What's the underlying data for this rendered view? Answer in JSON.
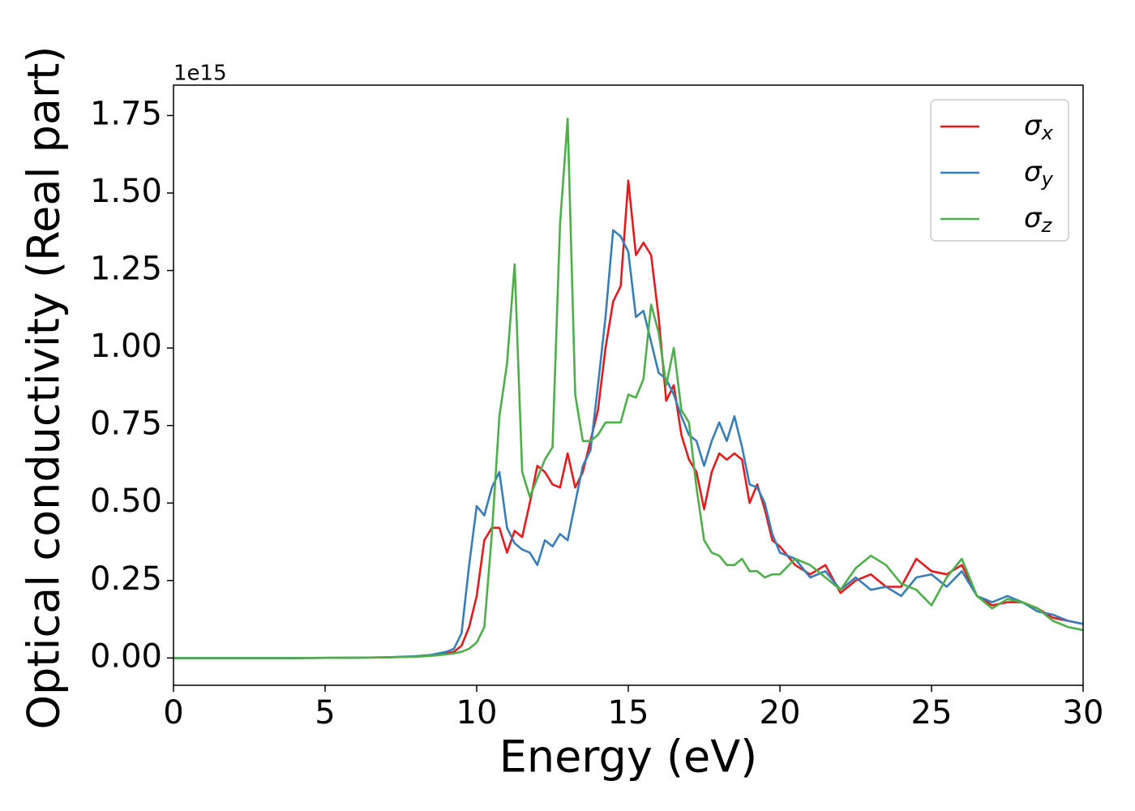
{
  "chart_data": {
    "type": "line",
    "xlabel": "Energy (eV)",
    "ylabel": "Optical conductivity (Real part)",
    "y_offset_label": "1e15",
    "x": [
      0,
      2,
      4,
      6,
      7,
      8,
      8.5,
      9,
      9.25,
      9.5,
      9.75,
      10,
      10.25,
      10.5,
      10.75,
      11,
      11.25,
      11.5,
      11.75,
      12,
      12.25,
      12.5,
      12.75,
      13,
      13.25,
      13.5,
      13.75,
      14,
      14.25,
      14.5,
      14.75,
      15,
      15.25,
      15.5,
      15.75,
      16,
      16.25,
      16.5,
      16.75,
      17,
      17.25,
      17.5,
      17.75,
      18,
      18.25,
      18.5,
      18.75,
      19,
      19.25,
      19.5,
      19.75,
      20,
      20.5,
      21,
      21.5,
      22,
      22.5,
      23,
      23.5,
      24,
      24.5,
      25,
      25.5,
      26,
      26.5,
      27,
      27.5,
      28,
      28.5,
      29,
      29.5,
      30
    ],
    "series": [
      {
        "name": "σx",
        "color": "#e41a1c",
        "values": [
          0,
          0,
          0,
          0.001,
          0.002,
          0.005,
          0.008,
          0.015,
          0.02,
          0.04,
          0.1,
          0.2,
          0.38,
          0.42,
          0.42,
          0.34,
          0.41,
          0.39,
          0.5,
          0.62,
          0.6,
          0.56,
          0.55,
          0.66,
          0.55,
          0.6,
          0.7,
          0.8,
          1.0,
          1.15,
          1.2,
          1.54,
          1.3,
          1.34,
          1.3,
          1.1,
          0.83,
          0.88,
          0.72,
          0.64,
          0.6,
          0.48,
          0.6,
          0.66,
          0.64,
          0.66,
          0.64,
          0.5,
          0.56,
          0.48,
          0.38,
          0.36,
          0.3,
          0.27,
          0.3,
          0.21,
          0.25,
          0.27,
          0.23,
          0.23,
          0.32,
          0.28,
          0.27,
          0.3,
          0.2,
          0.17,
          0.18,
          0.18,
          0.16,
          0.13,
          0.12,
          0.11
        ]
      },
      {
        "name": "σy",
        "color": "#377eb8",
        "values": [
          0,
          0,
          0,
          0.001,
          0.002,
          0.006,
          0.01,
          0.02,
          0.03,
          0.08,
          0.3,
          0.49,
          0.46,
          0.55,
          0.6,
          0.42,
          0.37,
          0.35,
          0.34,
          0.3,
          0.38,
          0.36,
          0.4,
          0.38,
          0.5,
          0.62,
          0.67,
          0.88,
          1.1,
          1.38,
          1.36,
          1.31,
          1.1,
          1.12,
          1.02,
          0.92,
          0.9,
          0.85,
          0.78,
          0.72,
          0.7,
          0.62,
          0.7,
          0.76,
          0.7,
          0.78,
          0.68,
          0.56,
          0.55,
          0.5,
          0.4,
          0.34,
          0.32,
          0.26,
          0.28,
          0.22,
          0.26,
          0.22,
          0.23,
          0.2,
          0.26,
          0.27,
          0.23,
          0.28,
          0.2,
          0.18,
          0.2,
          0.18,
          0.15,
          0.14,
          0.12,
          0.11
        ]
      },
      {
        "name": "σz",
        "color": "#4daf4a",
        "values": [
          0,
          0,
          0,
          0.001,
          0.002,
          0.004,
          0.007,
          0.012,
          0.015,
          0.02,
          0.03,
          0.05,
          0.1,
          0.4,
          0.78,
          0.95,
          1.27,
          0.6,
          0.52,
          0.58,
          0.64,
          0.68,
          1.4,
          1.74,
          0.85,
          0.7,
          0.7,
          0.72,
          0.76,
          0.76,
          0.76,
          0.85,
          0.84,
          0.9,
          1.14,
          1.05,
          0.88,
          1.0,
          0.8,
          0.76,
          0.55,
          0.38,
          0.34,
          0.33,
          0.3,
          0.3,
          0.32,
          0.28,
          0.28,
          0.26,
          0.27,
          0.27,
          0.32,
          0.3,
          0.26,
          0.22,
          0.29,
          0.33,
          0.3,
          0.24,
          0.22,
          0.17,
          0.26,
          0.32,
          0.2,
          0.16,
          0.19,
          0.18,
          0.16,
          0.12,
          0.1,
          0.09
        ]
      }
    ],
    "xlim": [
      0,
      30
    ],
    "xticks": [
      0,
      5,
      10,
      15,
      20,
      25,
      30
    ],
    "ylim": [
      -0.088,
      1.848
    ],
    "yticks": [
      {
        "value": 0,
        "label": "0.00"
      },
      0.25,
      {
        "value": 0.5,
        "label": "0.50"
      },
      0.75,
      {
        "value": 1,
        "label": "1.00"
      },
      1.25,
      {
        "value": 1.5,
        "label": "1.50"
      },
      1.75
    ],
    "legend": "upper right",
    "grid": false
  }
}
